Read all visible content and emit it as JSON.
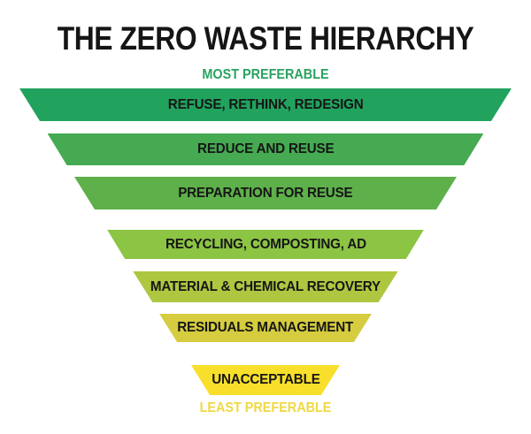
{
  "title": "THE ZERO WASTE HIERARCHY",
  "funnel": {
    "top_label": "MOST PREFERABLE",
    "bottom_label": "LEAST PREFERABLE",
    "levels": [
      {
        "label": "REFUSE, RETHINK, REDESIGN",
        "color": "#21a35e"
      },
      {
        "label": "REDUCE AND REUSE",
        "color": "#45aa52"
      },
      {
        "label": "PREPARATION FOR REUSE",
        "color": "#5eb04a"
      },
      {
        "label": "RECYCLING, COMPOSTING, AD",
        "color": "#8cc444"
      },
      {
        "label": "MATERIAL & CHEMICAL RECOVERY",
        "color": "#adc741"
      },
      {
        "label": "RESIDUALS MANAGEMENT",
        "color": "#d5cc3f"
      },
      {
        "label": "UNACCEPTABLE",
        "color": "#f8df2b"
      }
    ]
  },
  "colors": {
    "title_text": "#151515",
    "level_text": "#161616",
    "top_label_text": "#27a35f",
    "bottom_label_text": "#f0d843",
    "background": "#ffffff"
  }
}
